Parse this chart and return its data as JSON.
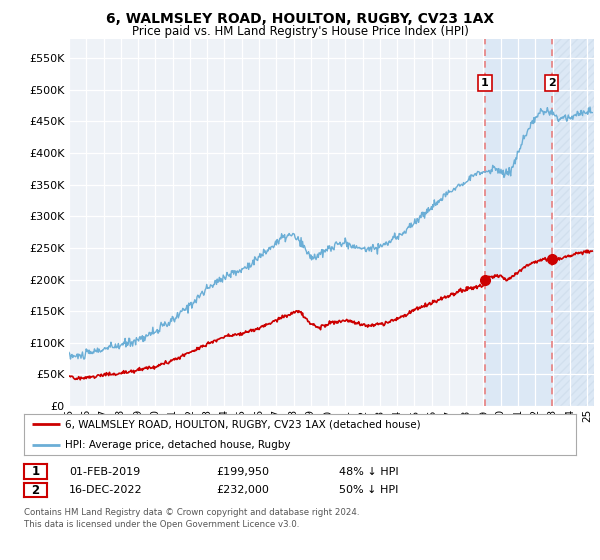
{
  "title": "6, WALMSLEY ROAD, HOULTON, RUGBY, CV23 1AX",
  "subtitle": "Price paid vs. HM Land Registry's House Price Index (HPI)",
  "legend_line1": "6, WALMSLEY ROAD, HOULTON, RUGBY, CV23 1AX (detached house)",
  "legend_line2": "HPI: Average price, detached house, Rugby",
  "annotation1_date": "01-FEB-2019",
  "annotation1_price": "£199,950",
  "annotation1_hpi": "48% ↓ HPI",
  "annotation2_date": "16-DEC-2022",
  "annotation2_price": "£232,000",
  "annotation2_hpi": "50% ↓ HPI",
  "footer": "Contains HM Land Registry data © Crown copyright and database right 2024.\nThis data is licensed under the Open Government Licence v3.0.",
  "hpi_color": "#6baed6",
  "price_color": "#cc0000",
  "dashed_line_color": "#e88080",
  "background_color": "#ffffff",
  "plot_bg_color": "#eef2f7",
  "shade_color": "#dce8f5",
  "hatch_color": "#c8d8e8",
  "ylim": [
    0,
    580000
  ],
  "yticks": [
    0,
    50000,
    100000,
    150000,
    200000,
    250000,
    300000,
    350000,
    400000,
    450000,
    500000,
    550000
  ],
  "sale1_x": 2019.083,
  "sale1_y": 199950,
  "sale2_x": 2022.958,
  "sale2_y": 232000,
  "xlim_start": 1995.0,
  "xlim_end": 2025.4
}
